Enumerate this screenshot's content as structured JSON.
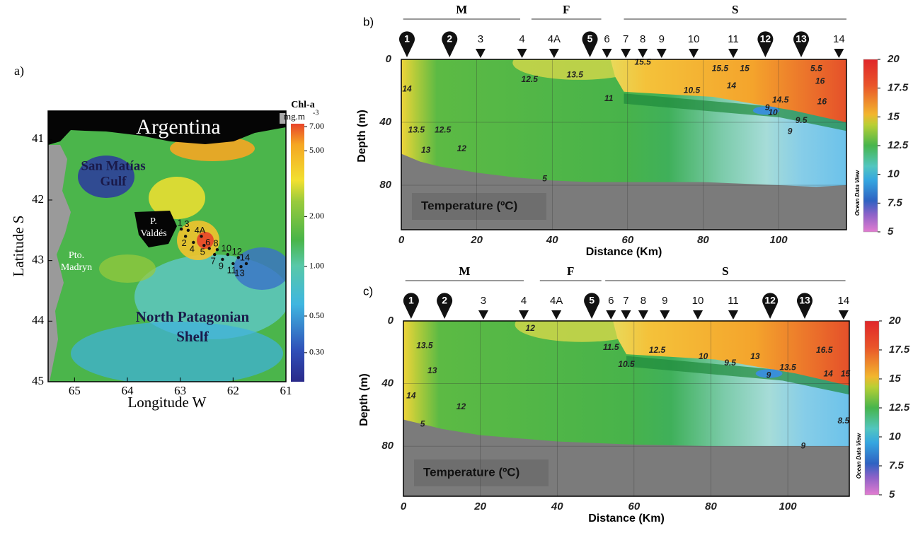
{
  "chart_data": [
    {
      "type": "map",
      "panel_label": "a)",
      "xlabel": "Longitude W",
      "ylabel": "Latitude S",
      "xlim": [
        65.5,
        61
      ],
      "ylim": [
        45,
        40.53
      ],
      "xticks": [
        65,
        64,
        63,
        62,
        61
      ],
      "yticks": [
        41,
        42,
        43,
        44,
        45
      ],
      "places": [
        [
          "Argentina"
        ],
        [
          "San Matías",
          "Gulf"
        ],
        [
          "P.",
          "Valdés"
        ],
        [
          "Pto.",
          "Madryn"
        ],
        [
          "North Patagonian",
          "Shelf"
        ]
      ],
      "colorbar": {
        "title": "Chl-a",
        "unit": "mg.m",
        "unit_exponent": "-3",
        "log_scale": true,
        "lim": [
          0.2,
          7.3
        ],
        "ticks": [
          {
            "value": 0.3,
            "label": "0.30"
          },
          {
            "value": 0.5,
            "label": "0.50"
          },
          {
            "value": 1,
            "label": "1.00"
          },
          {
            "value": 2,
            "label": "2.00"
          },
          {
            "value": 5,
            "label": "5.00"
          },
          {
            "value": 7,
            "label": "7.00"
          }
        ]
      },
      "stations": {
        "labels": [
          "1",
          "2",
          "3",
          "4",
          "4A",
          "5",
          "6",
          "7",
          "8",
          "9",
          "10",
          "11",
          "12",
          "13",
          "14"
        ],
        "lon": [
          62.98,
          62.9,
          62.85,
          62.75,
          62.6,
          62.55,
          62.45,
          62.35,
          62.3,
          62.2,
          62.1,
          62.0,
          61.9,
          61.85,
          61.75
        ],
        "lat": [
          42.48,
          42.6,
          42.5,
          42.7,
          42.6,
          42.75,
          42.8,
          42.9,
          42.82,
          42.98,
          42.9,
          43.05,
          42.95,
          43.1,
          43.05
        ]
      }
    },
    {
      "type": "section",
      "panel_label": "b)",
      "xlabel": "Distance (Km)",
      "ylabel": "Depth (m)",
      "xlim": [
        0,
        118
      ],
      "ylim": [
        108.3,
        0
      ],
      "xticks": [
        0,
        20,
        40,
        60,
        80,
        100
      ],
      "yticks": [
        0,
        40,
        80
      ],
      "grid": true,
      "field_label": "Temperature (ºC)",
      "credit": "Ocean Data View",
      "colorbar": {
        "lim": [
          5,
          20
        ],
        "ticks": [
          5,
          7.5,
          10,
          12.5,
          15,
          17.5,
          20
        ]
      },
      "zones": {
        "names": [
          "M",
          "F",
          "S"
        ],
        "start": [
          0.5,
          34.5,
          59
        ],
        "end": [
          31.5,
          53,
          118
        ]
      },
      "stations": {
        "labels": [
          "1",
          "2",
          "3",
          "4",
          "4A",
          "5",
          "6",
          "7",
          "8",
          "9",
          "10",
          "11",
          "12",
          "13",
          "14"
        ],
        "x": [
          1.5,
          12.8,
          21,
          32,
          40.5,
          50,
          54.5,
          59.5,
          64,
          69,
          77.5,
          88,
          96.5,
          106,
          116
        ],
        "circled": [
          true,
          true,
          false,
          false,
          false,
          true,
          false,
          false,
          false,
          false,
          false,
          false,
          true,
          true,
          false
        ]
      },
      "bottom": {
        "x": [
          0,
          5,
          10,
          20,
          30,
          40,
          50,
          60,
          80,
          90,
          100,
          110,
          118
        ],
        "depth": [
          60,
          65,
          68,
          72,
          75,
          77,
          78,
          78,
          78,
          79,
          80,
          81,
          80
        ]
      },
      "contour_labels": {
        "values": [
          14,
          13.5,
          13,
          12.5,
          12,
          5,
          12.5,
          13.5,
          11,
          15.5,
          15.5,
          15,
          10.5,
          14,
          5.5,
          16,
          16,
          14.5,
          9,
          10,
          9.5,
          9
        ],
        "x": [
          1.5,
          4,
          6.5,
          11,
          16,
          38,
          34,
          46,
          55,
          64,
          84.5,
          91,
          77,
          87.5,
          110,
          111,
          111.5,
          100.5,
          97,
          98.5,
          106,
          103
        ],
        "depth": [
          19,
          45,
          58,
          45,
          57,
          76,
          13,
          10,
          25,
          2,
          6,
          6,
          20,
          17,
          6,
          14,
          27,
          26,
          31,
          34,
          39,
          46
        ]
      }
    },
    {
      "type": "section",
      "panel_label": "c)",
      "xlabel": "Distance (Km)",
      "ylabel": "Depth (m)",
      "xlim": [
        0,
        116
      ],
      "ylim": [
        112,
        0
      ],
      "xticks": [
        0,
        20,
        40,
        60,
        80,
        100
      ],
      "yticks": [
        0,
        40,
        80
      ],
      "grid": true,
      "field_label": "Temperature (ºC)",
      "credit": "Ocean Data View",
      "colorbar": {
        "lim": [
          5,
          20
        ],
        "ticks": [
          5,
          7.5,
          10,
          12.5,
          15,
          17.5,
          20
        ]
      },
      "zones": {
        "names": [
          "M",
          "F",
          "S"
        ],
        "start": [
          0.5,
          35.5,
          52.5
        ],
        "end": [
          31.3,
          51.5,
          115
        ]
      },
      "stations": {
        "labels": [
          "1",
          "2",
          "3",
          "4",
          "4A",
          "5",
          "6",
          "7",
          "8",
          "9",
          "10",
          "11",
          "12",
          "13",
          "14"
        ],
        "x": [
          2,
          10.7,
          20.8,
          31.3,
          39.8,
          49,
          54,
          57.9,
          62.4,
          68,
          76.6,
          85.8,
          95.4,
          104.4,
          114.5
        ],
        "circled": [
          true,
          true,
          false,
          false,
          false,
          true,
          false,
          false,
          false,
          false,
          false,
          false,
          true,
          true,
          false
        ]
      },
      "bottom": {
        "x": [
          0,
          5,
          10,
          20,
          30,
          40,
          50,
          60,
          80,
          100,
          116
        ],
        "depth": [
          63,
          66,
          69,
          73,
          75,
          77,
          78,
          79,
          80,
          80,
          80
        ]
      },
      "contour_labels": {
        "values": [
          13.5,
          13,
          14,
          12,
          5,
          12,
          11.5,
          10.5,
          12.5,
          10,
          9.5,
          13,
          13.5,
          14,
          16.5,
          15,
          9,
          9,
          8.5
        ],
        "x": [
          5.5,
          7.5,
          2,
          15,
          5,
          33,
          54,
          58,
          66,
          78,
          85,
          91.5,
          100,
          110.5,
          109.5,
          115,
          95,
          104,
          114.5
        ],
        "depth": [
          16,
          32,
          48,
          55,
          66,
          5,
          17,
          28,
          19,
          23,
          27,
          23,
          30,
          34,
          19,
          34,
          35,
          80,
          64
        ]
      }
    }
  ]
}
